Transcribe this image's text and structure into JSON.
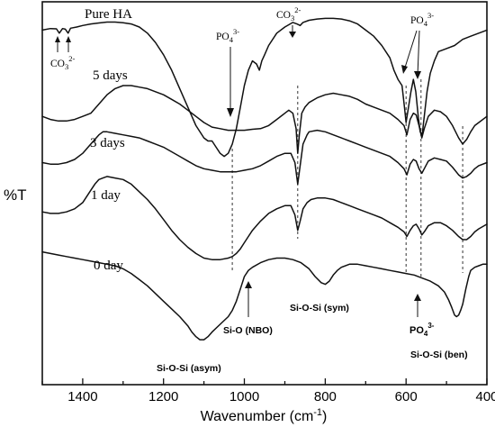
{
  "chart_data": {
    "type": "line",
    "ylabel": "%T",
    "xlabel_main": "Wavenumber (cm",
    "xlabel_sup": "-1",
    "xlabel_end": ")",
    "xlim": [
      1500,
      400
    ],
    "x_tick_labels": [
      "1400",
      "1200",
      "1000",
      "800",
      "600",
      "400"
    ],
    "y_tick_labels": [],
    "series": [
      {
        "name": "Pure HA",
        "x": [
          1500,
          1480,
          1465,
          1458,
          1450,
          1443,
          1436,
          1430,
          1415,
          1400,
          1380,
          1360,
          1340,
          1320,
          1300,
          1280,
          1260,
          1240,
          1220,
          1200,
          1180,
          1160,
          1140,
          1120,
          1100,
          1090,
          1080,
          1070,
          1060,
          1050,
          1040,
          1030,
          1020,
          1010,
          1000,
          990,
          980,
          970,
          963,
          957,
          950,
          940,
          920,
          900,
          880,
          870,
          862,
          855,
          840,
          820,
          800,
          780,
          760,
          740,
          720,
          700,
          680,
          660,
          640,
          630,
          620,
          610,
          604,
          600,
          594,
          588,
          582,
          576,
          570,
          565,
          560,
          555,
          548,
          540,
          530,
          520,
          500,
          480,
          460,
          440,
          420,
          400
        ],
        "y": [
          80,
          80.5,
          80.4,
          79,
          80.5,
          80.3,
          79,
          80.6,
          81,
          81.5,
          82,
          82.3,
          82.6,
          82.6,
          82.4,
          82,
          81,
          79,
          76,
          72,
          67,
          61,
          55,
          49,
          45,
          44,
          44,
          42,
          40,
          39,
          40,
          43,
          48,
          55,
          62,
          67,
          70,
          69,
          67,
          70,
          72,
          75,
          79,
          81,
          82.5,
          82,
          81.5,
          82.5,
          83.2,
          83.6,
          83.8,
          83.8,
          83.6,
          83,
          82,
          80,
          78,
          75,
          71,
          67,
          64,
          62,
          55,
          50,
          55,
          60,
          64,
          60,
          52,
          47,
          46,
          52,
          60,
          66,
          70,
          73,
          74,
          75,
          77,
          78,
          79,
          80
        ]
      },
      {
        "name": "5 days",
        "x": [
          1500,
          1480,
          1460,
          1440,
          1420,
          1400,
          1380,
          1360,
          1340,
          1320,
          1300,
          1280,
          1260,
          1240,
          1220,
          1200,
          1180,
          1160,
          1140,
          1120,
          1100,
          1080,
          1060,
          1040,
          1020,
          1000,
          980,
          960,
          940,
          920,
          900,
          890,
          880,
          872,
          868,
          864,
          858,
          850,
          840,
          820,
          800,
          780,
          760,
          740,
          720,
          700,
          680,
          660,
          640,
          620,
          605,
          598,
          590,
          582,
          575,
          568,
          561,
          555,
          545,
          530,
          515,
          500,
          485,
          470,
          460,
          450,
          440,
          430,
          420,
          400
        ],
        "y": [
          52,
          51,
          50.5,
          50.5,
          51,
          52,
          53,
          56,
          59,
          61,
          62,
          62,
          61.5,
          61,
          60,
          59,
          57.5,
          56,
          54,
          52,
          50,
          48.5,
          48,
          47.5,
          47.5,
          47.5,
          47.8,
          48,
          49,
          51,
          53,
          54,
          53,
          48,
          40,
          46,
          53,
          55,
          56.5,
          58,
          59,
          59.5,
          59,
          58.5,
          57.5,
          56,
          55,
          54,
          53,
          51,
          49,
          46,
          51,
          53,
          52.5,
          49,
          45,
          48,
          52,
          54,
          53.5,
          52,
          49,
          45,
          43,
          44.5,
          47,
          49,
          50,
          52
        ]
      },
      {
        "name": "3 days",
        "x": [
          1500,
          1480,
          1460,
          1440,
          1420,
          1400,
          1380,
          1360,
          1350,
          1340,
          1320,
          1300,
          1280,
          1260,
          1240,
          1220,
          1200,
          1180,
          1160,
          1140,
          1120,
          1100,
          1080,
          1060,
          1040,
          1020,
          1000,
          980,
          960,
          940,
          920,
          900,
          885,
          875,
          868,
          862,
          855,
          845,
          840,
          820,
          800,
          780,
          760,
          740,
          720,
          700,
          680,
          660,
          640,
          620,
          605,
          598,
          590,
          582,
          575,
          568,
          561,
          555,
          545,
          530,
          515,
          500,
          485,
          470,
          460,
          450,
          440,
          430,
          420,
          400
        ],
        "y": [
          37,
          36.5,
          36.5,
          37,
          38,
          40,
          43,
          46,
          47,
          47,
          46.5,
          46,
          45.5,
          45,
          44,
          43,
          42,
          40.5,
          39,
          37.5,
          36,
          35,
          34.5,
          34,
          34,
          34,
          34.5,
          35,
          36,
          37.5,
          39,
          40,
          40,
          37,
          30,
          36,
          43,
          46,
          47,
          47.5,
          47,
          46,
          45,
          44,
          43,
          42,
          41,
          40,
          39,
          37,
          35,
          33,
          36.5,
          38,
          37.5,
          35,
          33.5,
          35,
          37.5,
          38.5,
          38,
          37.5,
          35.5,
          33,
          32,
          32.5,
          33.5,
          35,
          36,
          37
        ]
      },
      {
        "name": "1 day",
        "x": [
          1500,
          1480,
          1460,
          1440,
          1420,
          1400,
          1390,
          1380,
          1370,
          1360,
          1350,
          1340,
          1320,
          1300,
          1280,
          1260,
          1240,
          1220,
          1200,
          1180,
          1160,
          1140,
          1120,
          1100,
          1080,
          1060,
          1040,
          1030,
          1020,
          1010,
          1000,
          990,
          980,
          960,
          940,
          920,
          900,
          885,
          875,
          868,
          862,
          855,
          845,
          835,
          820,
          800,
          780,
          760,
          740,
          720,
          700,
          680,
          660,
          640,
          620,
          605,
          598,
          590,
          582,
          575,
          568,
          561,
          555,
          545,
          530,
          515,
          500,
          485,
          470,
          460,
          450,
          440,
          430,
          420,
          400
        ],
        "y": [
          21,
          20.5,
          20.5,
          21,
          22,
          24,
          26,
          28,
          30,
          31.5,
          32,
          32.5,
          32,
          31.5,
          30,
          27.5,
          25,
          22,
          18.5,
          15,
          12,
          9.5,
          7.5,
          6,
          5.5,
          5.5,
          6,
          6.5,
          7.5,
          9,
          11,
          13,
          15,
          18,
          20.5,
          22,
          23,
          23,
          20,
          15,
          18,
          22,
          24,
          25,
          25.5,
          25.5,
          25,
          24,
          23,
          22,
          21,
          20,
          19,
          17.5,
          16,
          14.5,
          13,
          15,
          16.5,
          17,
          15.5,
          13.5,
          14.5,
          16.5,
          17.5,
          17.5,
          16.5,
          15,
          13,
          12,
          12,
          13,
          14.5,
          15.5,
          17
        ]
      },
      {
        "name": "0 day",
        "x": [
          1500,
          1480,
          1460,
          1440,
          1420,
          1400,
          1380,
          1360,
          1340,
          1320,
          1300,
          1280,
          1260,
          1240,
          1220,
          1200,
          1180,
          1160,
          1140,
          1130,
          1120,
          1110,
          1100,
          1090,
          1080,
          1060,
          1040,
          1030,
          1020,
          1010,
          1000,
          990,
          980,
          960,
          940,
          920,
          900,
          880,
          860,
          840,
          825,
          810,
          800,
          790,
          780,
          770,
          760,
          740,
          720,
          700,
          680,
          660,
          640,
          620,
          600,
          580,
          560,
          540,
          520,
          505,
          495,
          487,
          480,
          475,
          470,
          465,
          460,
          452,
          445,
          440,
          430,
          420,
          410,
          400
        ],
        "y": [
          8,
          7.5,
          7,
          6.5,
          6,
          5.5,
          5,
          4.5,
          4,
          3.5,
          2.5,
          1,
          -1,
          -3,
          -5.5,
          -8,
          -10.5,
          -13,
          -16,
          -18,
          -19.5,
          -20.5,
          -20.5,
          -19.5,
          -18,
          -15.5,
          -13,
          -11,
          -8,
          -4,
          0,
          2,
          3,
          4.5,
          5.5,
          6,
          6,
          5.5,
          4.5,
          2.5,
          0,
          -2,
          -2.5,
          -1.5,
          0.5,
          2,
          3,
          4,
          4,
          3.5,
          3,
          2.5,
          2,
          1.5,
          1,
          0.5,
          -0.5,
          -1.5,
          -3,
          -5,
          -7.5,
          -10,
          -12.5,
          -13,
          -12.5,
          -11,
          -9,
          -4,
          0,
          2,
          3,
          3.5,
          4,
          4
        ]
      }
    ],
    "series_labels": [
      "Pure HA",
      "5 days",
      "3 days",
      "1 day",
      "0 day"
    ],
    "guides": [
      1030,
      868,
      600,
      563,
      460
    ],
    "annotations": [
      {
        "base": "CO",
        "sub": "3",
        "sup": "2-"
      },
      {
        "base": "PO",
        "sub": "4",
        "sup": "3-"
      },
      {
        "base": "CO",
        "sub": "3",
        "sup": "2-"
      },
      {
        "base": "PO",
        "sub": "4",
        "sup": "3-"
      },
      {
        "base": "PO",
        "sub": "4",
        "sup": "3-"
      }
    ],
    "band_labels": [
      "Si-O (NBO)",
      "Si-O-Si (sym)",
      "Si-O-Si (asym)",
      "Si-O-Si (ben)"
    ]
  }
}
